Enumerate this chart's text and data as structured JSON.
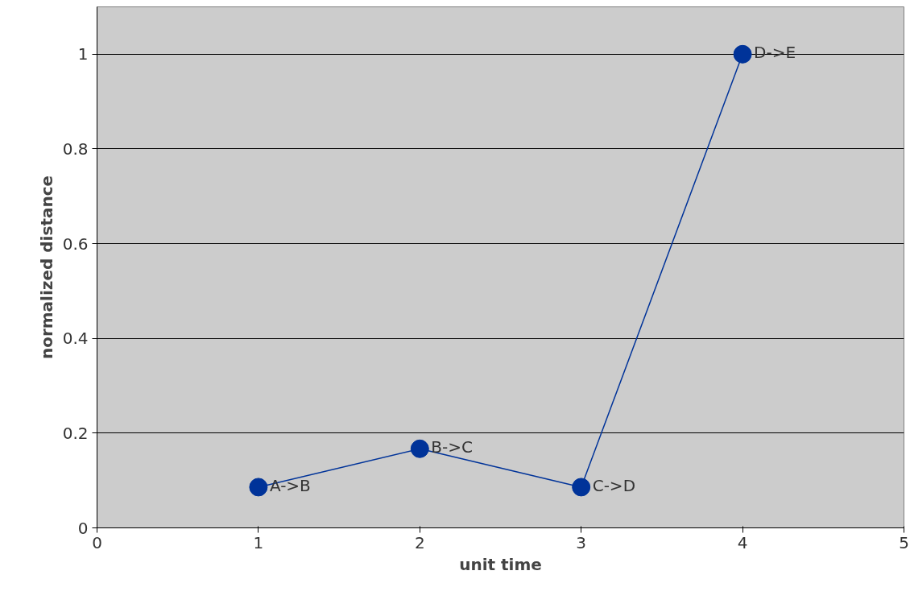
{
  "chart_data": {
    "type": "line",
    "xlabel": "unit time",
    "ylabel": "normalized distance",
    "x": [
      1,
      2,
      3,
      4
    ],
    "series": [
      {
        "color": "#003399",
        "values": [
          0.086,
          0.167,
          0.086,
          1.0
        ]
      }
    ],
    "annotations": [
      {
        "text": "A->B",
        "x": 1,
        "y": 0.086
      },
      {
        "text": "B->C",
        "x": 2,
        "y": 0.167
      },
      {
        "text": "C->D",
        "x": 3,
        "y": 0.086
      },
      {
        "text": "D->E",
        "x": 4,
        "y": 1.0
      }
    ],
    "xlim": [
      0,
      5
    ],
    "xticks": [
      0,
      1,
      2,
      3,
      4,
      5
    ],
    "ylim": [
      0,
      1.1
    ],
    "yticks": [
      0,
      0.2,
      0.4,
      0.6,
      0.8,
      1
    ],
    "grid": "y",
    "marker": "circle",
    "line_style": "solid"
  }
}
